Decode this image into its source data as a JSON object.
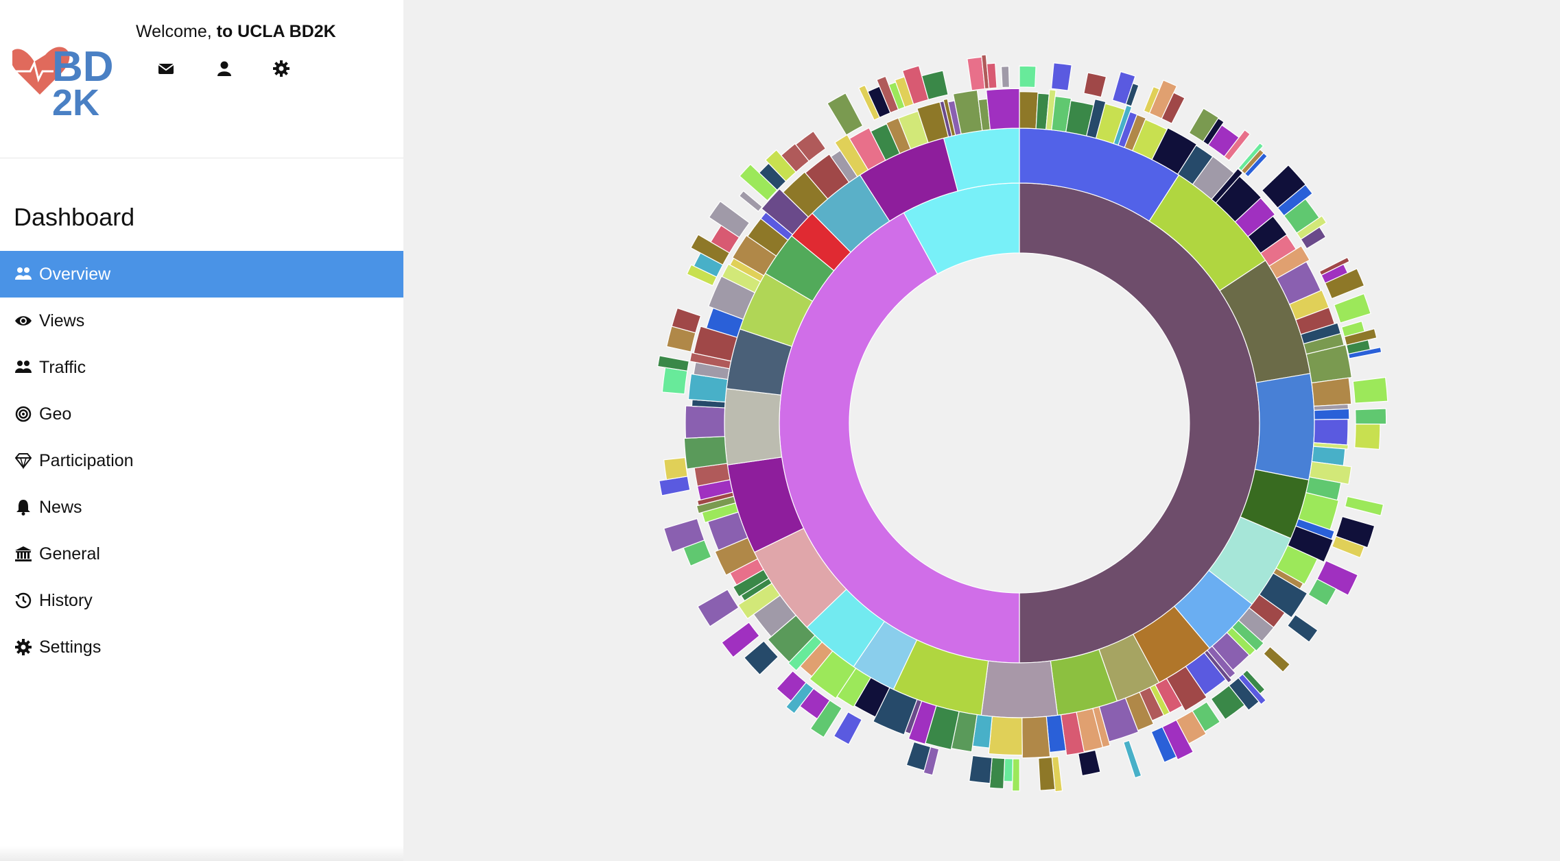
{
  "header": {
    "welcome_prefix": "Welcome, ",
    "welcome_bold": "to UCLA BD2K",
    "logo_text_top": "BD",
    "logo_text_bottom": "2K",
    "icons": [
      "envelope-icon",
      "user-icon",
      "gear-icon"
    ]
  },
  "sidebar": {
    "title": "Dashboard",
    "items": [
      {
        "label": "Overview",
        "icon": "users-icon",
        "active": true
      },
      {
        "label": "Views",
        "icon": "eye-icon",
        "active": false
      },
      {
        "label": "Traffic",
        "icon": "users-icon",
        "active": false
      },
      {
        "label": "Geo",
        "icon": "target-icon",
        "active": false
      },
      {
        "label": "Participation",
        "icon": "diamond-icon",
        "active": false
      },
      {
        "label": "News",
        "icon": "bell-icon",
        "active": false
      },
      {
        "label": "General",
        "icon": "bank-icon",
        "active": false
      },
      {
        "label": "History",
        "icon": "history-icon",
        "active": false
      },
      {
        "label": "Settings",
        "icon": "gear-icon",
        "active": false
      }
    ]
  },
  "colors": {
    "accent": "#4a93e6",
    "logo_red": "#e06a5c",
    "logo_blue": "#4a80c4"
  },
  "chart_data": {
    "type": "sunburst",
    "rings": [
      {
        "level": 1,
        "segments": [
          {
            "value": 50,
            "color": "#6e4d6b"
          },
          {
            "value": 42,
            "color": "#d06ee8"
          },
          {
            "value": 8,
            "color": "#78f0f8"
          }
        ]
      },
      {
        "level": 2,
        "segments": [
          {
            "value": 11,
            "color": "#5262e8"
          },
          {
            "value": 8,
            "color": "#b0d640"
          },
          {
            "value": 8,
            "color": "#6b6b48"
          },
          {
            "value": 7,
            "color": "#4880d6"
          },
          {
            "value": 4,
            "color": "#386b20"
          },
          {
            "value": 5,
            "color": "#a6e6d8"
          },
          {
            "value": 4,
            "color": "#6aaef2"
          },
          {
            "value": 4,
            "color": "#b0762a"
          },
          {
            "value": 3,
            "color": "#a6a462"
          },
          {
            "value": 4,
            "color": "#8cc040"
          },
          {
            "value": 5,
            "color": "#a898a8"
          },
          {
            "value": 6,
            "color": "#b0d640"
          },
          {
            "value": 3,
            "color": "#8aceec"
          },
          {
            "value": 4,
            "color": "#72eaf0"
          },
          {
            "value": 6,
            "color": "#e0a6aa"
          },
          {
            "value": 6,
            "color": "#8e1e9c"
          },
          {
            "value": 5,
            "color": "#bcbcb0"
          },
          {
            "value": 4,
            "color": "#4a6078"
          },
          {
            "value": 4,
            "color": "#b0d656"
          },
          {
            "value": 3,
            "color": "#52aa5a"
          },
          {
            "value": 2,
            "color": "#e02a32"
          },
          {
            "value": 4,
            "color": "#5ab0c8"
          },
          {
            "value": 6,
            "color": "#8e1e9c"
          },
          {
            "value": 5,
            "color": "#78f0f8"
          }
        ]
      }
    ]
  }
}
